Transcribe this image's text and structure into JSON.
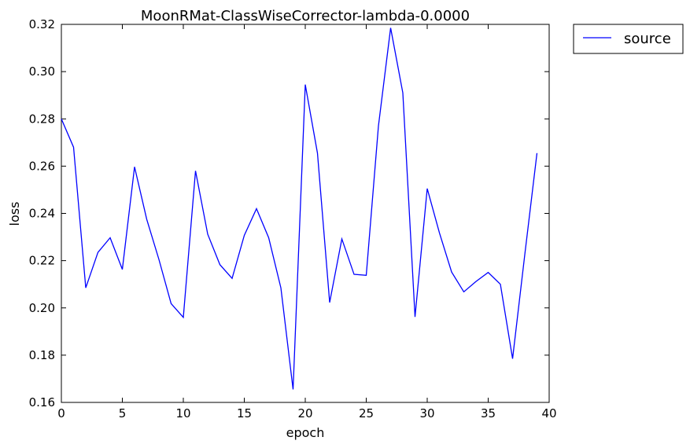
{
  "chart_data": {
    "type": "line",
    "title": "MoonRMat-ClassWiseCorrector-lambda-0.0000",
    "xlabel": "epoch",
    "ylabel": "loss",
    "xlim": [
      0,
      40
    ],
    "ylim": [
      0.16,
      0.32
    ],
    "xticks": [
      "0",
      "5",
      "10",
      "15",
      "20",
      "25",
      "30",
      "35",
      "40"
    ],
    "yticks": [
      "0.16",
      "0.18",
      "0.20",
      "0.22",
      "0.24",
      "0.26",
      "0.28",
      "0.30",
      "0.32"
    ],
    "grid": false,
    "legend_position": "outside-top-right",
    "series": [
      {
        "name": "source",
        "color": "#0000ff",
        "x": [
          0,
          1,
          2,
          3,
          4,
          5,
          6,
          7,
          8,
          9,
          10,
          11,
          12,
          13,
          14,
          15,
          16,
          17,
          18,
          19,
          20,
          21,
          22,
          23,
          24,
          25,
          26,
          27,
          28,
          29,
          30,
          31,
          32,
          33,
          34,
          35,
          36,
          37,
          38,
          39
        ],
        "values": [
          0.28,
          0.268,
          0.2085,
          0.2235,
          0.2297,
          0.2163,
          0.2597,
          0.2375,
          0.2205,
          0.2018,
          0.196,
          0.258,
          0.2312,
          0.2183,
          0.2125,
          0.2307,
          0.242,
          0.2297,
          0.2085,
          0.1655,
          0.2945,
          0.2655,
          0.2023,
          0.2292,
          0.2142,
          0.2138,
          0.277,
          0.3185,
          0.291,
          0.1962,
          0.2505,
          0.2318,
          0.2152,
          0.2068,
          0.2112,
          0.215,
          0.21,
          0.1785,
          0.2225,
          0.2655
        ]
      }
    ]
  }
}
